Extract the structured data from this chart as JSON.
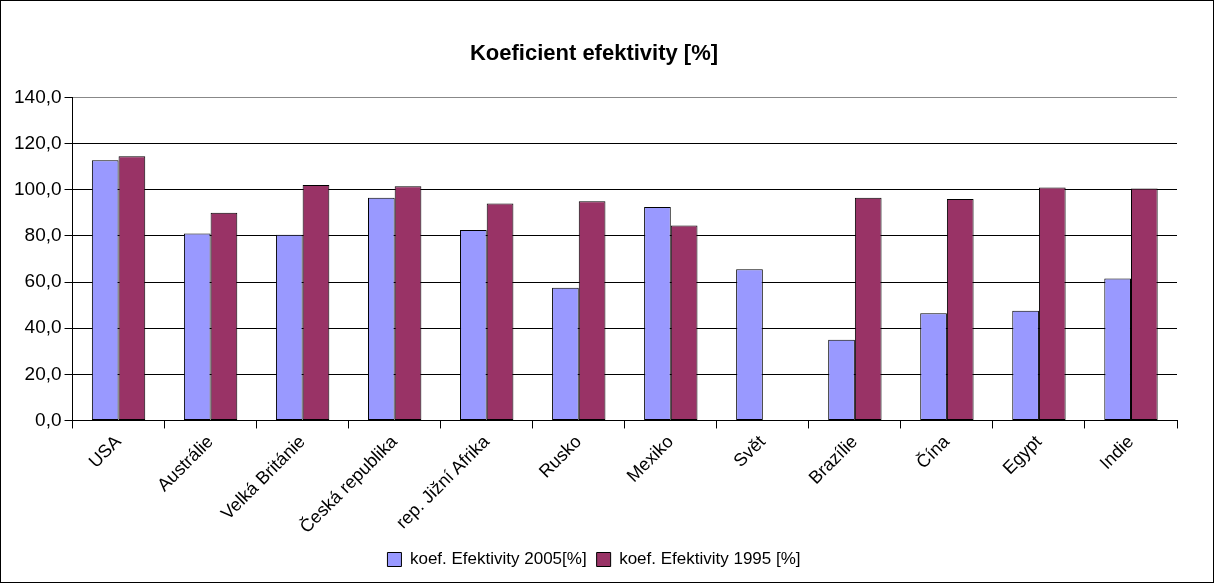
{
  "chart_data": {
    "type": "bar",
    "title": "Koeficient efektivity [%]",
    "categories": [
      "USA",
      "Austrálie",
      "Velká Británie",
      "Česká republika",
      "rep. Jižní Afrika",
      "Rusko",
      "Mexiko",
      "Svět",
      "Brazílie",
      "Čína",
      "Egypt",
      "Indie"
    ],
    "series": [
      {
        "name": "koef. Efektivity 2005[%]",
        "color": "#9999ff",
        "values": [
          112.8,
          81,
          80.5,
          96.5,
          82.5,
          57.5,
          92.5,
          65.5,
          35,
          46.5,
          47.5,
          61.5
        ]
      },
      {
        "name": "koef. Efektivity 1995 [%]",
        "color": "#993366",
        "values": [
          114.5,
          90,
          102,
          101.5,
          94,
          95,
          84.5,
          null,
          96.5,
          96,
          101,
          100.5
        ]
      }
    ],
    "ylim": [
      0,
      140
    ],
    "yticks": [
      {
        "value": 0,
        "label": "0,0"
      },
      {
        "value": 20,
        "label": "20,0"
      },
      {
        "value": 40,
        "label": "40,0"
      },
      {
        "value": 60,
        "label": "60,0"
      },
      {
        "value": 80,
        "label": "80,0"
      },
      {
        "value": 100,
        "label": "100,0"
      },
      {
        "value": 120,
        "label": "120,0"
      },
      {
        "value": 140,
        "label": "140,0"
      }
    ],
    "grid": "y",
    "legend": "bottom"
  }
}
